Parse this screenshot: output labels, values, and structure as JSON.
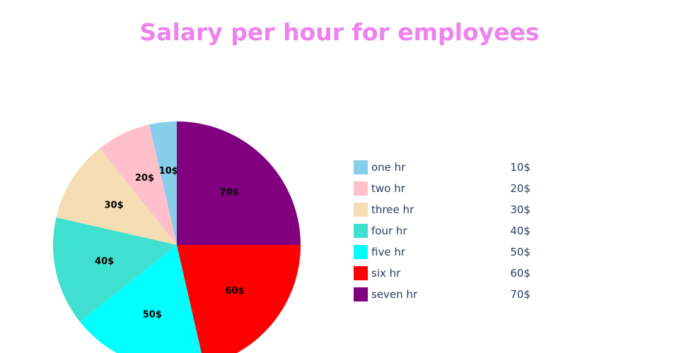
{
  "chart_data": {
    "type": "pie",
    "title": "Salary per hour for employees",
    "categories": [
      "one hr",
      "two hr",
      "three hr",
      "four hr",
      "five hr",
      "six hr",
      "seven hr"
    ],
    "values": [
      10,
      20,
      30,
      40,
      50,
      60,
      70
    ],
    "slice_labels": [
      "10$",
      "20$",
      "30$",
      "40$",
      "50$",
      "60$",
      "70$"
    ],
    "colors": [
      "#87ceeb",
      "#ffc0cb",
      "#f5deb3",
      "#40e0d0",
      "#00ffff",
      "#ff0000",
      "#800080"
    ],
    "direction": "counterclockwise",
    "start_angle": "12 o'clock",
    "legend_placement": "right",
    "title_color": "#ee82ee"
  }
}
